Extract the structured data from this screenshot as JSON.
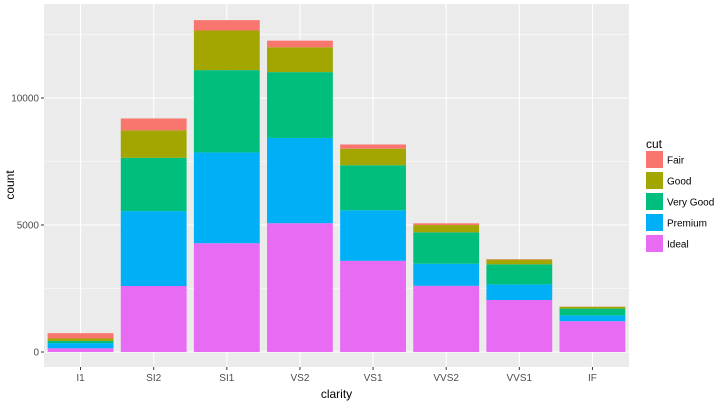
{
  "chart_data": {
    "type": "bar",
    "stacked": true,
    "title": "",
    "xlabel": "clarity",
    "ylabel": "count",
    "categories": [
      "I1",
      "SI2",
      "SI1",
      "VS2",
      "VS1",
      "VVS2",
      "VVS1",
      "IF"
    ],
    "ylim": [
      0,
      13065
    ],
    "yticks": [
      0,
      5000,
      10000
    ],
    "ytick_labels": [
      "0",
      "5000",
      "10000"
    ],
    "grid": true,
    "background": "#ebebeb",
    "legend": {
      "title": "cut",
      "position": "right"
    },
    "series": [
      {
        "name": "Fair",
        "color": "#F8766D",
        "values": [
          210,
          466,
          408,
          261,
          170,
          69,
          17,
          9
        ]
      },
      {
        "name": "Good",
        "color": "#A3A500",
        "values": [
          96,
          1081,
          1560,
          978,
          648,
          286,
          186,
          71
        ]
      },
      {
        "name": "Very Good",
        "color": "#00BF7D",
        "values": [
          84,
          2100,
          3240,
          2591,
          1775,
          1235,
          789,
          268
        ]
      },
      {
        "name": "Premium",
        "color": "#00B0F6",
        "values": [
          205,
          2949,
          3575,
          3357,
          1989,
          870,
          616,
          230
        ]
      },
      {
        "name": "Ideal",
        "color": "#E76BF3",
        "values": [
          146,
          2598,
          4282,
          5071,
          3589,
          2606,
          2047,
          1212
        ]
      }
    ]
  }
}
